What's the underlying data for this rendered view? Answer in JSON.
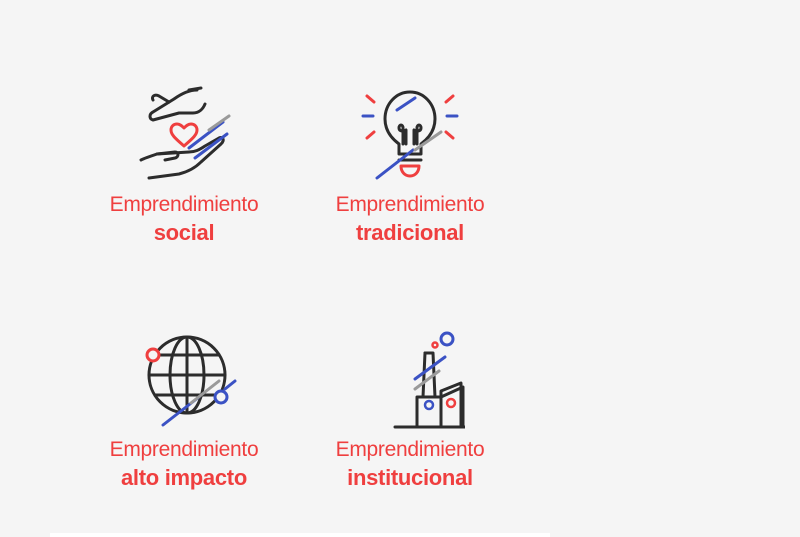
{
  "colors": {
    "accent_red": "#ef3f3f",
    "line_blue": "#3b52c4",
    "line_gray": "#9a9a9a",
    "stroke_dark": "#2c2c2c",
    "background": "#f5f5f5"
  },
  "cards": [
    {
      "icon": "hands-heart-icon",
      "line1": "Emprendimiento",
      "line2": "social"
    },
    {
      "icon": "lightbulb-icon",
      "line1": "Emprendimiento",
      "line2": "tradicional"
    },
    {
      "icon": "globe-icon",
      "line1": "Emprendimiento",
      "line2": "alto impacto"
    },
    {
      "icon": "factory-icon",
      "line1": "Emprendimiento",
      "line2": "institucional"
    }
  ]
}
